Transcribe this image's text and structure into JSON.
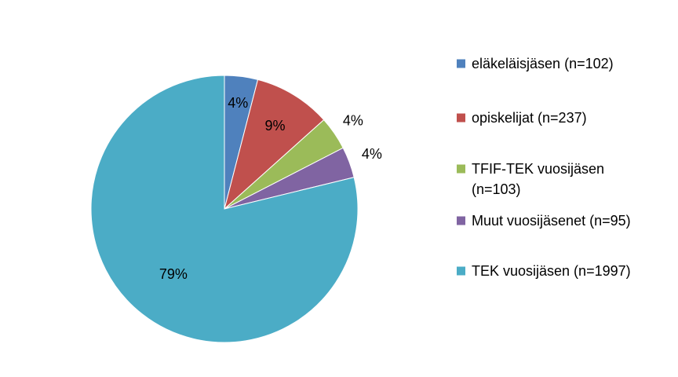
{
  "chart_data": {
    "type": "pie",
    "title": "",
    "legend_position": "right",
    "series": [
      {
        "name": "eläkeläisjäsen (n=102)",
        "legend_lines": [
          "eläkeläisjäsen (n=102)"
        ],
        "value": 102,
        "label": "4%",
        "color": "#4F81BD"
      },
      {
        "name": "opiskelijat (n=237)",
        "legend_lines": [
          "opiskelijat (n=237)"
        ],
        "value": 237,
        "label": "9%",
        "color": "#C0504D"
      },
      {
        "name": "TFIF-TEK vuosijäsen (n=103)",
        "legend_lines": [
          "TFIF-TEK vuosijäsen",
          "(n=103)"
        ],
        "value": 103,
        "label": "4%",
        "color": "#9BBB59"
      },
      {
        "name": "Muut vuosijäsenet (n=95)",
        "legend_lines": [
          "Muut vuosijäsenet (n=95)"
        ],
        "value": 95,
        "label": "4%",
        "color": "#8064A2"
      },
      {
        "name": "TEK vuosijäsen (n=1997)",
        "legend_lines": [
          "TEK vuosijäsen (n=1997)"
        ],
        "value": 1997,
        "label": "79%",
        "color": "#4BACC6"
      }
    ]
  }
}
